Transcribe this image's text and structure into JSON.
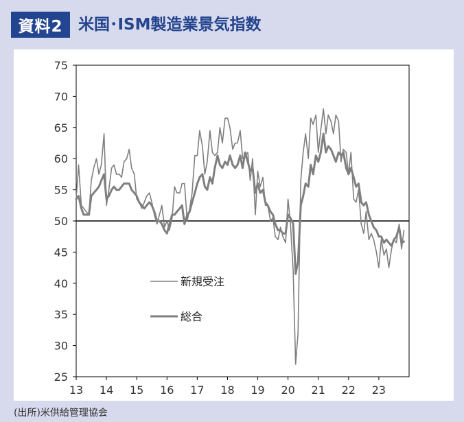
{
  "header": {
    "badge": "資料2",
    "title": "米国･ISM製造業景気指数"
  },
  "source": "(出所)米供給管理協会",
  "colors": {
    "header_accent": "#23448e",
    "background": "#d7d9ec",
    "series": "#7f7f7f",
    "reference_line": "#000000"
  },
  "chart_data": {
    "type": "line",
    "title": "",
    "xlabel": "",
    "ylabel": "",
    "xlim": [
      2013,
      2024
    ],
    "ylim": [
      25,
      75
    ],
    "yticks": [
      25,
      30,
      35,
      40,
      45,
      50,
      55,
      60,
      65,
      70,
      75
    ],
    "xticks": [
      {
        "value": 2013,
        "label": "13"
      },
      {
        "value": 2014,
        "label": "14"
      },
      {
        "value": 2015,
        "label": "15"
      },
      {
        "value": 2016,
        "label": "16"
      },
      {
        "value": 2017,
        "label": "17"
      },
      {
        "value": 2018,
        "label": "18"
      },
      {
        "value": 2019,
        "label": "19"
      },
      {
        "value": 2020,
        "label": "20"
      },
      {
        "value": 2021,
        "label": "21"
      },
      {
        "value": 2022,
        "label": "22"
      },
      {
        "value": 2023,
        "label": "23"
      }
    ],
    "reference_line": 50,
    "grid": false,
    "legend_position": "lower-left",
    "series": [
      {
        "name": "新規受注",
        "style": "thin",
        "x": [
          2013.0,
          2013.08,
          2013.17,
          2013.25,
          2013.33,
          2013.42,
          2013.5,
          2013.58,
          2013.67,
          2013.75,
          2013.83,
          2013.92,
          2014.0,
          2014.08,
          2014.17,
          2014.25,
          2014.33,
          2014.42,
          2014.5,
          2014.58,
          2014.67,
          2014.75,
          2014.83,
          2014.92,
          2015.0,
          2015.08,
          2015.17,
          2015.25,
          2015.33,
          2015.42,
          2015.5,
          2015.58,
          2015.67,
          2015.75,
          2015.83,
          2015.92,
          2016.0,
          2016.08,
          2016.17,
          2016.25,
          2016.33,
          2016.42,
          2016.5,
          2016.58,
          2016.67,
          2016.75,
          2016.83,
          2016.92,
          2017.0,
          2017.08,
          2017.17,
          2017.25,
          2017.33,
          2017.42,
          2017.5,
          2017.58,
          2017.67,
          2017.75,
          2017.83,
          2017.92,
          2018.0,
          2018.08,
          2018.17,
          2018.25,
          2018.33,
          2018.42,
          2018.5,
          2018.58,
          2018.67,
          2018.75,
          2018.83,
          2018.92,
          2019.0,
          2019.08,
          2019.17,
          2019.25,
          2019.33,
          2019.42,
          2019.5,
          2019.58,
          2019.67,
          2019.75,
          2019.83,
          2019.92,
          2020.0,
          2020.08,
          2020.17,
          2020.25,
          2020.33,
          2020.42,
          2020.5,
          2020.58,
          2020.67,
          2020.75,
          2020.83,
          2020.92,
          2021.0,
          2021.08,
          2021.17,
          2021.25,
          2021.33,
          2021.42,
          2021.5,
          2021.58,
          2021.67,
          2021.75,
          2021.83,
          2021.92,
          2022.0,
          2022.08,
          2022.17,
          2022.25,
          2022.33,
          2022.42,
          2022.5,
          2022.58,
          2022.67,
          2022.75,
          2022.83,
          2022.92,
          2023.0,
          2023.08,
          2023.17,
          2023.25,
          2023.33,
          2023.42,
          2023.5,
          2023.58,
          2023.67,
          2023.75,
          2023.83
        ],
        "values": [
          53.5,
          59.0,
          52.5,
          52.0,
          51.5,
          51.0,
          56.5,
          58.5,
          60.0,
          57.5,
          59.0,
          64.0,
          52.5,
          55.0,
          58.5,
          59.0,
          57.5,
          57.5,
          57.0,
          59.5,
          60.0,
          61.5,
          58.5,
          57.5,
          53.5,
          53.0,
          52.0,
          53.0,
          54.0,
          54.5,
          53.0,
          51.0,
          49.5,
          51.0,
          52.5,
          49.0,
          50.0,
          48.5,
          50.5,
          55.5,
          54.5,
          54.5,
          56.0,
          56.0,
          50.0,
          52.0,
          54.5,
          60.5,
          60.5,
          64.5,
          62.0,
          57.5,
          59.5,
          64.5,
          61.0,
          60.5,
          61.0,
          65.0,
          62.5,
          66.5,
          66.5,
          65.0,
          61.5,
          62.5,
          62.5,
          64.5,
          60.0,
          60.5,
          61.0,
          56.5,
          60.0,
          51.0,
          58.0,
          55.5,
          57.0,
          52.5,
          52.5,
          50.0,
          50.5,
          47.5,
          47.0,
          49.0,
          47.5,
          46.5,
          53.5,
          49.5,
          42.0,
          27.0,
          32.0,
          56.5,
          61.0,
          64.0,
          60.0,
          66.5,
          65.5,
          67.0,
          61.0,
          64.5,
          68.0,
          64.0,
          67.0,
          66.0,
          64.0,
          67.0,
          66.0,
          59.5,
          61.5,
          61.0,
          57.5,
          61.0,
          53.5,
          53.0,
          55.0,
          49.5,
          48.0,
          51.5,
          47.0,
          48.0,
          47.0,
          45.0,
          42.5,
          47.0,
          44.5,
          45.5,
          42.5,
          45.5,
          47.0,
          46.5,
          49.5,
          45.5,
          48.5
        ]
      },
      {
        "name": "総合",
        "style": "thick",
        "x": [
          2013.0,
          2013.08,
          2013.17,
          2013.25,
          2013.33,
          2013.42,
          2013.5,
          2013.58,
          2013.67,
          2013.75,
          2013.83,
          2013.92,
          2014.0,
          2014.08,
          2014.17,
          2014.25,
          2014.33,
          2014.42,
          2014.5,
          2014.58,
          2014.67,
          2014.75,
          2014.83,
          2014.92,
          2015.0,
          2015.08,
          2015.17,
          2015.25,
          2015.33,
          2015.42,
          2015.5,
          2015.58,
          2015.67,
          2015.75,
          2015.83,
          2015.92,
          2016.0,
          2016.08,
          2016.17,
          2016.25,
          2016.33,
          2016.42,
          2016.5,
          2016.58,
          2016.67,
          2016.75,
          2016.83,
          2016.92,
          2017.0,
          2017.08,
          2017.17,
          2017.25,
          2017.33,
          2017.42,
          2017.5,
          2017.58,
          2017.67,
          2017.75,
          2017.83,
          2017.92,
          2018.0,
          2018.08,
          2018.17,
          2018.25,
          2018.33,
          2018.42,
          2018.5,
          2018.58,
          2018.67,
          2018.75,
          2018.83,
          2018.92,
          2019.0,
          2019.08,
          2019.17,
          2019.25,
          2019.33,
          2019.42,
          2019.5,
          2019.58,
          2019.67,
          2019.75,
          2019.83,
          2019.92,
          2020.0,
          2020.08,
          2020.17,
          2020.25,
          2020.33,
          2020.42,
          2020.5,
          2020.58,
          2020.67,
          2020.75,
          2020.83,
          2020.92,
          2021.0,
          2021.08,
          2021.17,
          2021.25,
          2021.33,
          2021.42,
          2021.5,
          2021.58,
          2021.67,
          2021.75,
          2021.83,
          2021.92,
          2022.0,
          2022.08,
          2022.17,
          2022.25,
          2022.33,
          2022.42,
          2022.5,
          2022.58,
          2022.67,
          2022.75,
          2022.83,
          2022.92,
          2023.0,
          2023.08,
          2023.17,
          2023.25,
          2023.33,
          2023.42,
          2023.5,
          2023.58,
          2023.67,
          2023.75,
          2023.83
        ],
        "values": [
          53.5,
          54.0,
          52.0,
          51.0,
          51.0,
          51.0,
          54.0,
          54.5,
          55.0,
          55.5,
          56.5,
          57.5,
          53.5,
          54.0,
          55.0,
          55.5,
          55.0,
          55.0,
          55.5,
          56.0,
          56.0,
          56.0,
          55.0,
          54.5,
          54.0,
          53.0,
          52.5,
          52.0,
          52.5,
          53.0,
          52.5,
          51.5,
          50.0,
          50.0,
          49.5,
          48.5,
          48.0,
          49.5,
          51.0,
          51.0,
          51.5,
          52.0,
          52.5,
          49.5,
          51.0,
          51.5,
          53.0,
          54.5,
          56.0,
          57.0,
          57.5,
          55.5,
          55.0,
          57.0,
          56.0,
          58.5,
          60.5,
          59.0,
          58.5,
          59.5,
          59.0,
          60.5,
          59.0,
          58.5,
          59.0,
          60.5,
          58.5,
          61.0,
          59.5,
          58.0,
          58.5,
          54.5,
          56.0,
          54.5,
          55.0,
          53.0,
          52.5,
          51.5,
          51.0,
          49.5,
          48.5,
          48.5,
          48.0,
          48.0,
          51.0,
          50.5,
          49.5,
          41.5,
          43.5,
          52.5,
          54.0,
          56.0,
          55.5,
          59.0,
          57.5,
          60.5,
          59.5,
          61.0,
          64.0,
          61.0,
          62.0,
          61.5,
          60.5,
          59.5,
          61.0,
          60.5,
          61.0,
          58.5,
          57.5,
          58.5,
          57.0,
          55.5,
          56.0,
          53.0,
          52.5,
          53.0,
          51.0,
          50.0,
          49.0,
          48.5,
          47.5,
          47.5,
          46.5,
          47.0,
          46.5,
          46.0,
          47.0,
          47.5,
          49.0,
          46.5,
          46.7
        ]
      }
    ]
  }
}
